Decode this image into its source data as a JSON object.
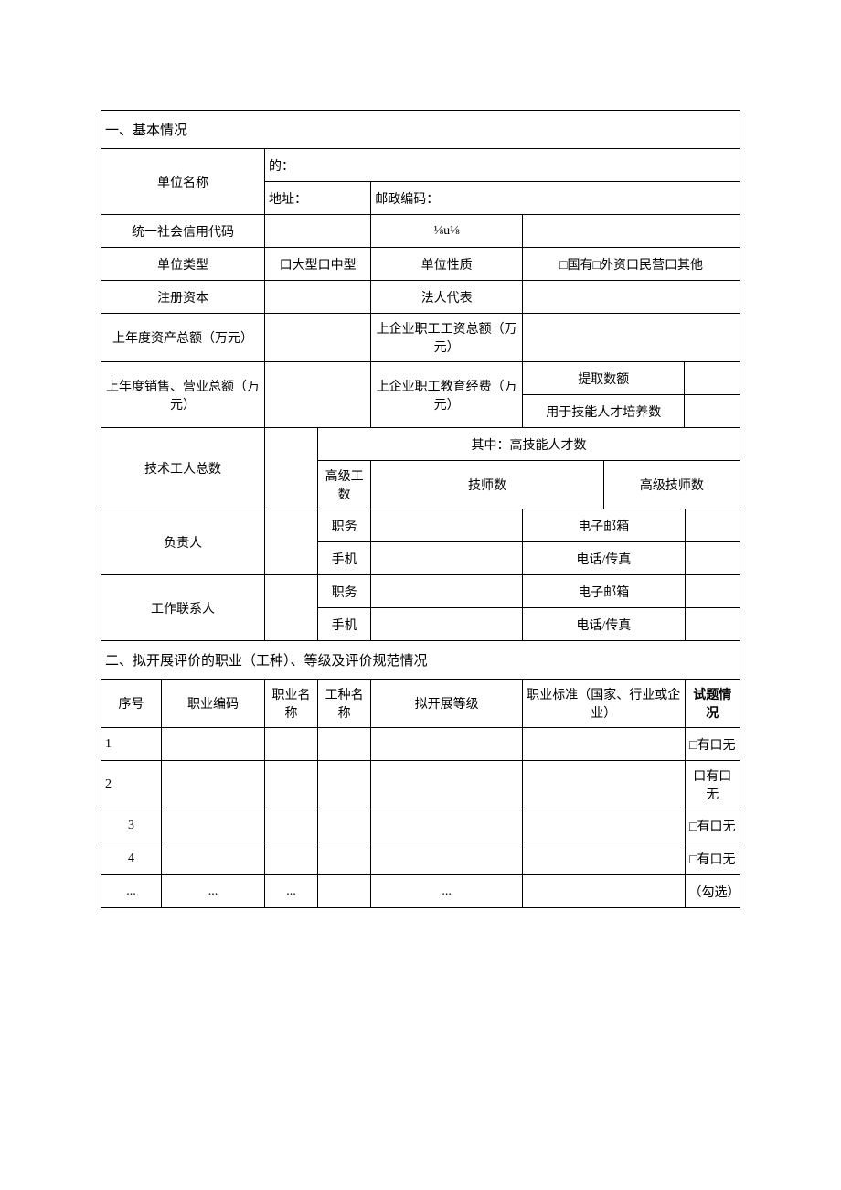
{
  "section1": {
    "title": "一、基本情况",
    "unit_name_label": "单位名称",
    "purpose_label": "的：",
    "address_label": "地址：",
    "postal_label": "邮政编码：",
    "credit_code_label": "统一社会信用代码",
    "fraction_text": "⅛u⅛",
    "unit_type_label": "单位类型",
    "unit_type_options": "口大型口中型",
    "unit_nature_label": "单位性质",
    "unit_nature_options": "□国有□外资口民营口其他",
    "registered_capital_label": "注册资本",
    "legal_rep_label": "法人代表",
    "last_year_asset_label": "上年度资产总额（万元）",
    "employee_salary_label": "上企业职工工资总额（万元）",
    "last_year_sales_label": "上年度销售、营业总额（万元）",
    "education_fee_label": "上企业职工教育经费（万元）",
    "extract_amount_label": "提取数额",
    "skill_training_label": "用于技能人才培养数",
    "tech_worker_total_label": "技术工人总数",
    "high_skill_label": "其中：高技能人才数",
    "senior_worker_label": "高级工数",
    "technician_label": "技师数",
    "senior_technician_label": "高级技师数",
    "responsible_label": "负责人",
    "contact_label": "工作联系人",
    "position_label": "职务",
    "mobile_label": "手机",
    "email_label": "电子邮箱",
    "phone_fax_label": "电话/传真"
  },
  "section2": {
    "title": "二、拟开展评价的职业（工种）、等级及评价规范情况",
    "headers": {
      "seq": "序号",
      "job_code": "职业编码",
      "job_name": "职业名称",
      "work_name": "工种名称",
      "level": "拟开展等级",
      "standard": "职业标准（国家、行业或企业）",
      "question_status": "试题情况"
    },
    "rows": [
      {
        "seq": "1",
        "code": "",
        "name": "",
        "work": "",
        "level": "",
        "std": "",
        "status": "□有口无"
      },
      {
        "seq": "2",
        "code": "",
        "name": "",
        "work": "",
        "level": "",
        "std": "",
        "status": "口有口无"
      },
      {
        "seq": "3",
        "code": "",
        "name": "",
        "work": "",
        "level": "",
        "std": "",
        "status": "□有口无"
      },
      {
        "seq": "4",
        "code": "",
        "name": "",
        "work": "",
        "level": "",
        "std": "",
        "status": "□有口无"
      },
      {
        "seq": "...",
        "code": "...",
        "name": "...",
        "work": "",
        "level": "...",
        "std": "",
        "status": "（勾选）"
      }
    ]
  },
  "style": {
    "border_color": "#000000",
    "background_color": "#ffffff",
    "text_color": "#000000",
    "font_size": 14,
    "header_font_size": 15
  }
}
